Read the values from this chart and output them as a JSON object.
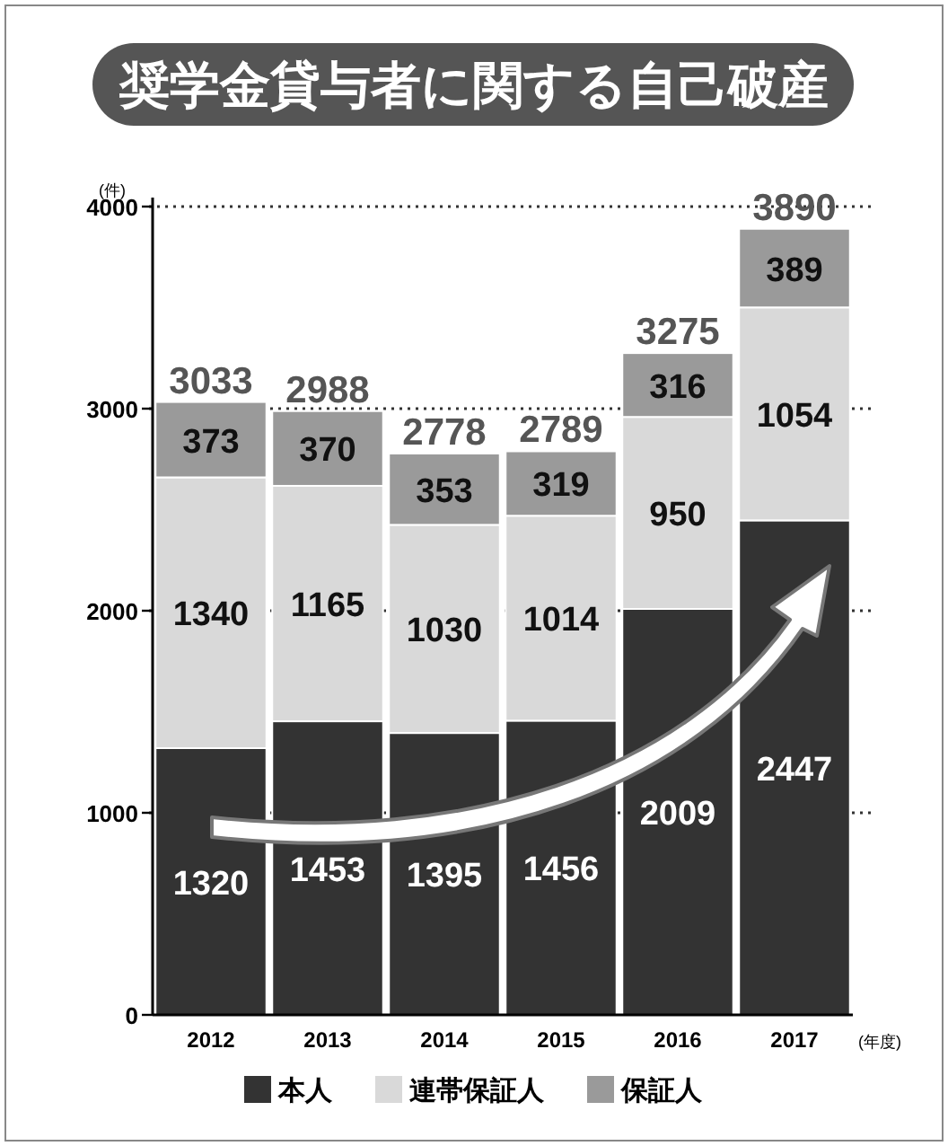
{
  "chart_data": {
    "type": "bar",
    "title": "奨学金貸与者に関する自己破産",
    "ylabel": "(件)",
    "xlabel": "(年度)",
    "categories": [
      "2012",
      "2013",
      "2014",
      "2015",
      "2016",
      "2017"
    ],
    "stacked": true,
    "series": [
      {
        "name": "本人",
        "color": "#333333",
        "values": [
          1320,
          1453,
          1395,
          1456,
          2009,
          2447
        ]
      },
      {
        "name": "連帯保証人",
        "color": "#d9d9d9",
        "values": [
          1340,
          1165,
          1030,
          1014,
          950,
          1054
        ]
      },
      {
        "name": "保証人",
        "color": "#9a9a9a",
        "values": [
          373,
          370,
          353,
          319,
          316,
          389
        ]
      }
    ],
    "totals": [
      "3033",
      "2988",
      "2778",
      "2789",
      "3275",
      "3890"
    ],
    "data_labels": true,
    "ylim": [
      0,
      4000
    ],
    "yticks": [
      0,
      1000,
      2000,
      3000,
      4000
    ],
    "grid": "y",
    "legend": "bottom"
  }
}
